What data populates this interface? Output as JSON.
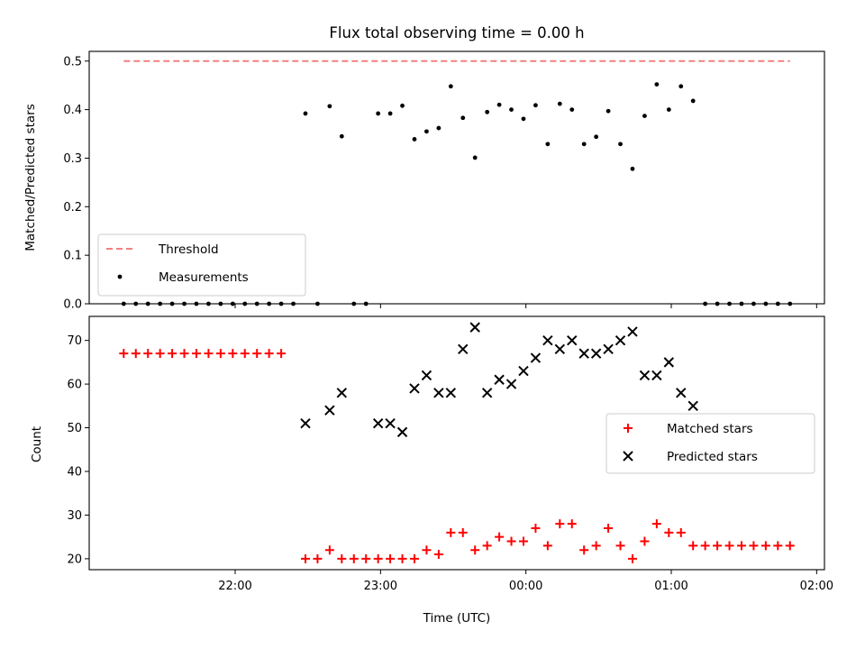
{
  "chart_data": [
    {
      "type": "scatter",
      "title": "Flux total observing time = 0.00 h",
      "xlabel": "",
      "ylabel": "Matched/Predicted stars",
      "ylim": [
        0,
        0.52
      ],
      "yticks": [
        "0.0",
        "0.1",
        "0.2",
        "0.3",
        "0.4",
        "0.5"
      ],
      "grid": false,
      "legend_position": "lower-left",
      "threshold": {
        "name": "Threshold",
        "value": 0.5,
        "color": "#f08080",
        "style": "dashed",
        "x_start": "21:14",
        "x_end": "01:49"
      },
      "series": [
        {
          "name": "Measurements",
          "color": "#000000",
          "marker": "dot",
          "points": [
            [
              "21:14",
              0.0
            ],
            [
              "21:19",
              0.0
            ],
            [
              "21:24",
              0.0
            ],
            [
              "21:29",
              0.0
            ],
            [
              "21:34",
              0.0
            ],
            [
              "21:39",
              0.0
            ],
            [
              "21:44",
              0.0
            ],
            [
              "21:49",
              0.0
            ],
            [
              "21:54",
              0.0
            ],
            [
              "21:59",
              0.0
            ],
            [
              "22:04",
              0.0
            ],
            [
              "22:09",
              0.0
            ],
            [
              "22:14",
              0.0
            ],
            [
              "22:19",
              0.0
            ],
            [
              "22:24",
              0.0
            ],
            [
              "22:29",
              0.392
            ],
            [
              "22:34",
              0.0
            ],
            [
              "22:39",
              0.407
            ],
            [
              "22:44",
              0.345
            ],
            [
              "22:49",
              0.0
            ],
            [
              "22:54",
              0.0
            ],
            [
              "22:59",
              0.392
            ],
            [
              "23:04",
              0.392
            ],
            [
              "23:09",
              0.408
            ],
            [
              "23:14",
              0.339
            ],
            [
              "23:19",
              0.355
            ],
            [
              "23:24",
              0.362
            ],
            [
              "23:29",
              0.448
            ],
            [
              "23:34",
              0.383
            ],
            [
              "23:39",
              0.301
            ],
            [
              "23:44",
              0.395
            ],
            [
              "23:49",
              0.41
            ],
            [
              "23:54",
              0.4
            ],
            [
              "23:59",
              0.381
            ],
            [
              "00:04",
              0.409
            ],
            [
              "00:09",
              0.329
            ],
            [
              "00:14",
              0.412
            ],
            [
              "00:19",
              0.4
            ],
            [
              "00:24",
              0.329
            ],
            [
              "00:29",
              0.344
            ],
            [
              "00:34",
              0.397
            ],
            [
              "00:39",
              0.329
            ],
            [
              "00:44",
              0.278
            ],
            [
              "00:49",
              0.387
            ],
            [
              "00:54",
              0.452
            ],
            [
              "00:59",
              0.4
            ],
            [
              "01:04",
              0.448
            ],
            [
              "01:09",
              0.418
            ],
            [
              "01:14",
              0.0
            ],
            [
              "01:19",
              0.0
            ],
            [
              "01:24",
              0.0
            ],
            [
              "01:29",
              0.0
            ],
            [
              "01:34",
              0.0
            ],
            [
              "01:39",
              0.0
            ],
            [
              "01:44",
              0.0
            ],
            [
              "01:49",
              0.0
            ]
          ]
        }
      ]
    },
    {
      "type": "scatter",
      "title": "",
      "xlabel": "Time (UTC)",
      "ylabel": "Count",
      "ylim": [
        17.5,
        75.5
      ],
      "yticks": [
        "20",
        "30",
        "40",
        "50",
        "60",
        "70"
      ],
      "xticks": [
        "22:00",
        "23:00",
        "00:00",
        "01:00",
        "02:00"
      ],
      "grid": false,
      "legend_position": "center-right",
      "series": [
        {
          "name": "Matched stars",
          "color": "#ff0000",
          "marker": "plus",
          "points": [
            [
              "21:14",
              67
            ],
            [
              "21:19",
              67
            ],
            [
              "21:24",
              67
            ],
            [
              "21:29",
              67
            ],
            [
              "21:34",
              67
            ],
            [
              "21:39",
              67
            ],
            [
              "21:44",
              67
            ],
            [
              "21:49",
              67
            ],
            [
              "21:54",
              67
            ],
            [
              "21:59",
              67
            ],
            [
              "22:04",
              67
            ],
            [
              "22:09",
              67
            ],
            [
              "22:14",
              67
            ],
            [
              "22:19",
              67
            ],
            [
              "22:29",
              20
            ],
            [
              "22:34",
              20
            ],
            [
              "22:39",
              22
            ],
            [
              "22:44",
              20
            ],
            [
              "22:49",
              20
            ],
            [
              "22:54",
              20
            ],
            [
              "22:59",
              20
            ],
            [
              "23:04",
              20
            ],
            [
              "23:09",
              20
            ],
            [
              "23:14",
              20
            ],
            [
              "23:19",
              22
            ],
            [
              "23:24",
              21
            ],
            [
              "23:29",
              26
            ],
            [
              "23:34",
              26
            ],
            [
              "23:39",
              22
            ],
            [
              "23:44",
              23
            ],
            [
              "23:49",
              25
            ],
            [
              "23:54",
              24
            ],
            [
              "23:59",
              24
            ],
            [
              "00:04",
              27
            ],
            [
              "00:09",
              23
            ],
            [
              "00:14",
              28
            ],
            [
              "00:19",
              28
            ],
            [
              "00:24",
              22
            ],
            [
              "00:29",
              23
            ],
            [
              "00:34",
              27
            ],
            [
              "00:39",
              23
            ],
            [
              "00:44",
              20
            ],
            [
              "00:49",
              24
            ],
            [
              "00:54",
              28
            ],
            [
              "00:59",
              26
            ],
            [
              "01:04",
              26
            ],
            [
              "01:09",
              23
            ],
            [
              "01:14",
              23
            ],
            [
              "01:19",
              23
            ],
            [
              "01:24",
              23
            ],
            [
              "01:29",
              23
            ],
            [
              "01:34",
              23
            ],
            [
              "01:39",
              23
            ],
            [
              "01:44",
              23
            ],
            [
              "01:49",
              23
            ]
          ]
        },
        {
          "name": "Predicted stars",
          "color": "#000000",
          "marker": "x",
          "points": [
            [
              "22:29",
              51
            ],
            [
              "22:39",
              54
            ],
            [
              "22:44",
              58
            ],
            [
              "22:59",
              51
            ],
            [
              "23:04",
              51
            ],
            [
              "23:09",
              49
            ],
            [
              "23:14",
              59
            ],
            [
              "23:19",
              62
            ],
            [
              "23:24",
              58
            ],
            [
              "23:29",
              58
            ],
            [
              "23:34",
              68
            ],
            [
              "23:39",
              73
            ],
            [
              "23:44",
              58
            ],
            [
              "23:49",
              61
            ],
            [
              "23:54",
              60
            ],
            [
              "23:59",
              63
            ],
            [
              "00:04",
              66
            ],
            [
              "00:09",
              70
            ],
            [
              "00:14",
              68
            ],
            [
              "00:19",
              70
            ],
            [
              "00:24",
              67
            ],
            [
              "00:29",
              67
            ],
            [
              "00:34",
              68
            ],
            [
              "00:39",
              70
            ],
            [
              "00:44",
              72
            ],
            [
              "00:49",
              62
            ],
            [
              "00:54",
              62
            ],
            [
              "00:59",
              65
            ],
            [
              "01:04",
              58
            ],
            [
              "01:09",
              55
            ]
          ]
        }
      ]
    }
  ]
}
